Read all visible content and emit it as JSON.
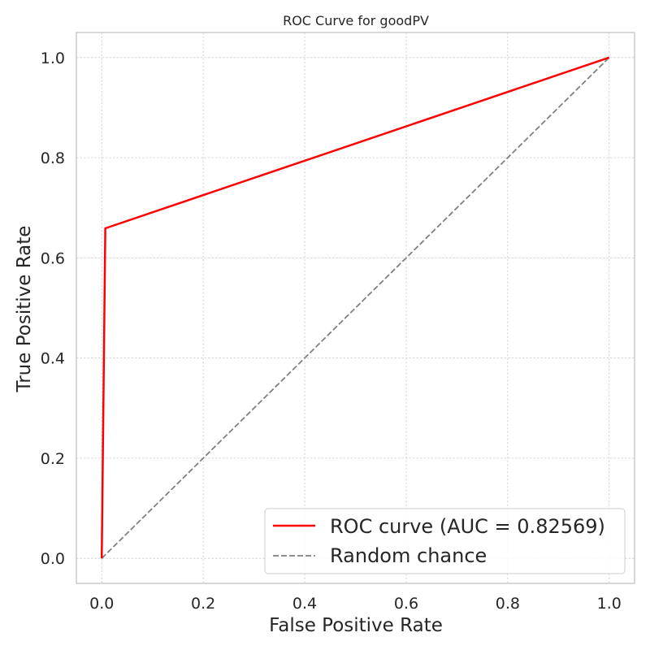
{
  "chart_data": {
    "type": "line",
    "title": "ROC Curve for goodPV",
    "xlabel": "False Positive Rate",
    "ylabel": "True Positive Rate",
    "xlim": [
      -0.05,
      1.05
    ],
    "ylim": [
      -0.05,
      1.05
    ],
    "x_ticks": [
      "0.0",
      "0.2",
      "0.4",
      "0.6",
      "0.8",
      "1.0"
    ],
    "y_ticks": [
      "0.0",
      "0.2",
      "0.4",
      "0.6",
      "0.8",
      "1.0"
    ],
    "grid": true,
    "legend_position": "lower-right",
    "series": [
      {
        "name": "ROC curve (AUC = 0.82569)",
        "color": "#ff0000",
        "line_style": "solid",
        "x": [
          0.0,
          0.007,
          1.0
        ],
        "y": [
          0.0,
          0.659,
          1.0
        ]
      },
      {
        "name": "Random chance",
        "color": "#808080",
        "line_style": "dashed",
        "x": [
          0.0,
          1.0
        ],
        "y": [
          0.0,
          1.0
        ]
      }
    ]
  }
}
